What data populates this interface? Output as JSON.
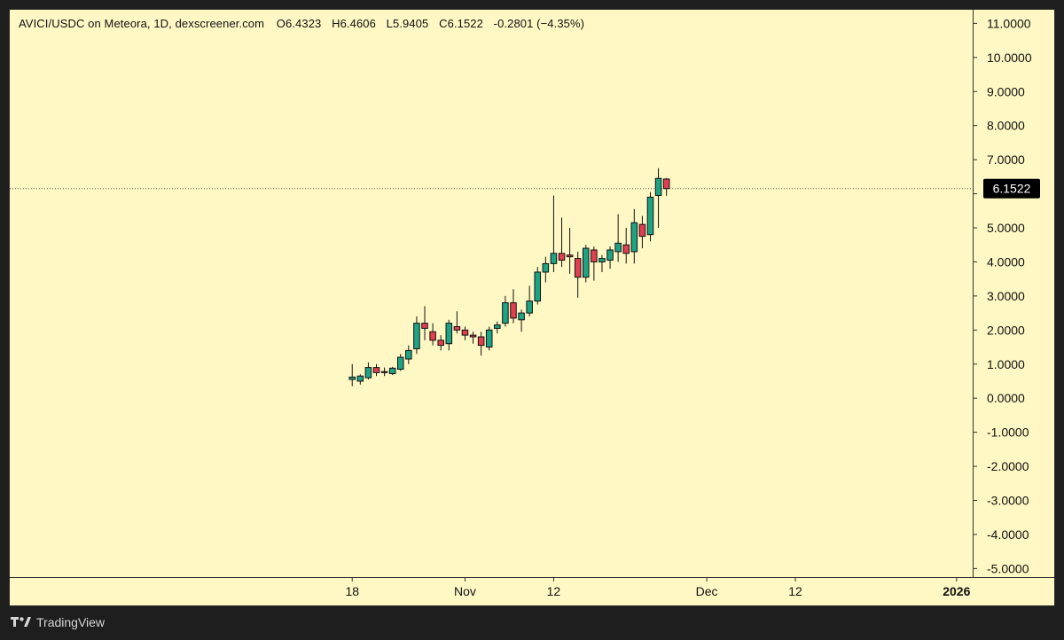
{
  "header": {
    "symbol": "AVICI/USDC on Meteora, 1D, dexscreener.com",
    "open": "O6.4323",
    "high": "H6.4606",
    "low": "L5.9405",
    "close": "C6.1522",
    "change": "-0.2801 (−4.35%)"
  },
  "footer": {
    "brand": "TradingView"
  },
  "colors": {
    "background": "#fff8c4",
    "up": "#1fa385",
    "down": "#e04050",
    "wick": "#111111"
  },
  "chart_data": {
    "type": "candlestick",
    "title": "AVICI/USDC on Meteora, 1D, dexscreener.com",
    "ylim": [
      -5.25,
      11.4
    ],
    "y_ticks": [
      "11.0000",
      "10.0000",
      "9.0000",
      "8.0000",
      "7.0000",
      "6.0000",
      "5.0000",
      "4.0000",
      "3.0000",
      "2.0000",
      "1.0000",
      "0.0000",
      "-1.0000",
      "-2.0000",
      "-3.0000",
      "-4.0000",
      "-5.0000"
    ],
    "x_ticks": [
      {
        "label": "18",
        "index": 0
      },
      {
        "label": "Nov",
        "index": 14
      },
      {
        "label": "12",
        "index": 25
      },
      {
        "label": "Dec",
        "index": 44
      },
      {
        "label": "12",
        "index": 55
      },
      {
        "label": "2026",
        "index": 75
      }
    ],
    "x_index_range": [
      -42.5,
      77
    ],
    "last_price": "6.1522",
    "last_price_value": 6.1522,
    "candles": [
      {
        "o": 0.55,
        "h": 1.0,
        "l": 0.35,
        "c": 0.62
      },
      {
        "o": 0.5,
        "h": 0.7,
        "l": 0.4,
        "c": 0.65
      },
      {
        "o": 0.6,
        "h": 1.05,
        "l": 0.55,
        "c": 0.9
      },
      {
        "o": 0.9,
        "h": 1.0,
        "l": 0.65,
        "c": 0.75
      },
      {
        "o": 0.78,
        "h": 0.9,
        "l": 0.65,
        "c": 0.75
      },
      {
        "o": 0.72,
        "h": 0.92,
        "l": 0.68,
        "c": 0.88
      },
      {
        "o": 0.85,
        "h": 1.3,
        "l": 0.8,
        "c": 1.2
      },
      {
        "o": 1.15,
        "h": 1.55,
        "l": 1.0,
        "c": 1.4
      },
      {
        "o": 1.45,
        "h": 2.4,
        "l": 1.3,
        "c": 2.2
      },
      {
        "o": 2.2,
        "h": 2.7,
        "l": 1.7,
        "c": 2.05
      },
      {
        "o": 1.95,
        "h": 2.2,
        "l": 1.55,
        "c": 1.7
      },
      {
        "o": 1.7,
        "h": 1.85,
        "l": 1.4,
        "c": 1.55
      },
      {
        "o": 1.6,
        "h": 2.3,
        "l": 1.4,
        "c": 2.2
      },
      {
        "o": 2.1,
        "h": 2.55,
        "l": 1.9,
        "c": 2.0
      },
      {
        "o": 2.0,
        "h": 2.1,
        "l": 1.7,
        "c": 1.85
      },
      {
        "o": 1.85,
        "h": 1.95,
        "l": 1.6,
        "c": 1.8
      },
      {
        "o": 1.8,
        "h": 1.95,
        "l": 1.25,
        "c": 1.55
      },
      {
        "o": 1.5,
        "h": 2.1,
        "l": 1.4,
        "c": 2.0
      },
      {
        "o": 2.05,
        "h": 2.25,
        "l": 1.9,
        "c": 2.15
      },
      {
        "o": 2.2,
        "h": 3.0,
        "l": 2.1,
        "c": 2.8
      },
      {
        "o": 2.8,
        "h": 3.2,
        "l": 2.2,
        "c": 2.35
      },
      {
        "o": 2.3,
        "h": 2.6,
        "l": 1.95,
        "c": 2.5
      },
      {
        "o": 2.5,
        "h": 3.3,
        "l": 2.4,
        "c": 2.85
      },
      {
        "o": 2.85,
        "h": 3.85,
        "l": 2.75,
        "c": 3.7
      },
      {
        "o": 3.7,
        "h": 4.15,
        "l": 3.4,
        "c": 3.95
      },
      {
        "o": 3.95,
        "h": 5.95,
        "l": 3.7,
        "c": 4.25
      },
      {
        "o": 4.25,
        "h": 5.3,
        "l": 3.85,
        "c": 4.05
      },
      {
        "o": 4.2,
        "h": 5.0,
        "l": 3.65,
        "c": 4.15
      },
      {
        "o": 4.1,
        "h": 4.3,
        "l": 2.95,
        "c": 3.55
      },
      {
        "o": 3.55,
        "h": 4.5,
        "l": 3.4,
        "c": 4.4
      },
      {
        "o": 4.35,
        "h": 4.45,
        "l": 3.45,
        "c": 4.0
      },
      {
        "o": 4.0,
        "h": 4.2,
        "l": 3.7,
        "c": 4.1
      },
      {
        "o": 4.05,
        "h": 4.45,
        "l": 3.8,
        "c": 4.35
      },
      {
        "o": 4.3,
        "h": 5.4,
        "l": 4.0,
        "c": 4.55
      },
      {
        "o": 4.5,
        "h": 5.0,
        "l": 3.95,
        "c": 4.25
      },
      {
        "o": 4.3,
        "h": 5.55,
        "l": 3.95,
        "c": 5.15
      },
      {
        "o": 5.1,
        "h": 5.35,
        "l": 4.4,
        "c": 4.75
      },
      {
        "o": 4.8,
        "h": 6.05,
        "l": 4.6,
        "c": 5.9
      },
      {
        "o": 5.95,
        "h": 6.75,
        "l": 5.0,
        "c": 6.45
      },
      {
        "o": 6.4323,
        "h": 6.4606,
        "l": 5.9405,
        "c": 6.1522
      }
    ]
  }
}
